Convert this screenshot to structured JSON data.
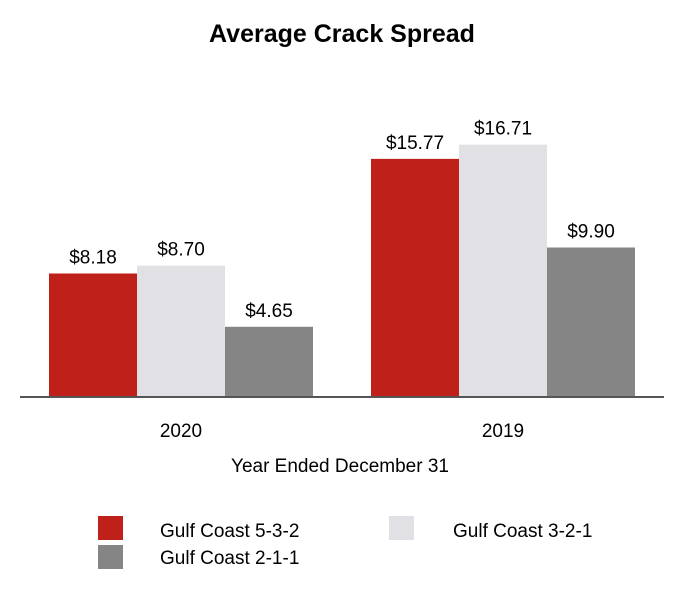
{
  "chart_data": {
    "type": "bar",
    "title": "Average Crack Spread",
    "xlabel": "Year Ended December 31",
    "ylabel": "",
    "categories": [
      "2020",
      "2019"
    ],
    "ylim": [
      0,
      18
    ],
    "value_prefix": "$",
    "decimals": 2,
    "series": [
      {
        "name": "Gulf Coast 5-3-2",
        "color": "#c0201a",
        "values": [
          8.18,
          15.77
        ]
      },
      {
        "name": "Gulf Coast 3-2-1",
        "color": "#e0e0e5",
        "values": [
          8.7,
          16.71
        ]
      },
      {
        "name": "Gulf Coast 2-1-1",
        "color": "#858585",
        "values": [
          4.65,
          9.9
        ]
      }
    ],
    "axis_color": "#555555",
    "grid": false,
    "legend_position": "bottom"
  }
}
